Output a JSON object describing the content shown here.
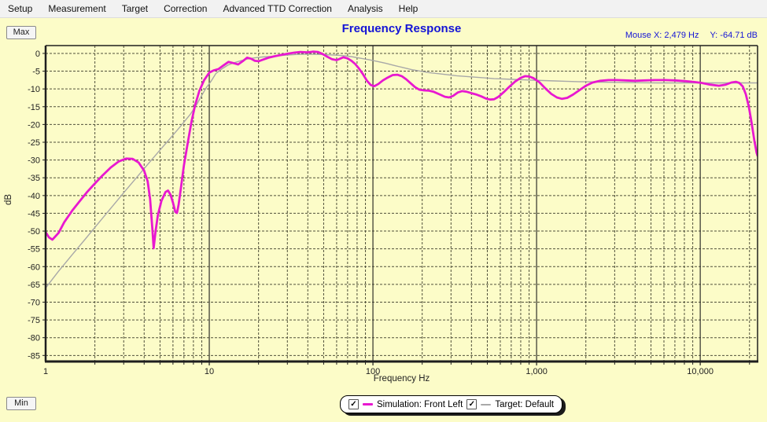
{
  "menu": {
    "items": [
      "Setup",
      "Measurement",
      "Target",
      "Correction",
      "Advanced TTD Correction",
      "Analysis",
      "Help"
    ]
  },
  "buttons": {
    "max_label": "Max",
    "min_label": "Min"
  },
  "header": {
    "mouse_x_readout": "Mouse X: 2,479 Hz",
    "mouse_y_readout": "Y: -64.71 dB"
  },
  "colors": {
    "page_bg": "#fcfcc8",
    "plot_bg": "#fcfcc8",
    "grid_dash": "#50503a",
    "grid_major": "#30302a",
    "border": "#1e1e1e",
    "accent_blue": "#1414d6",
    "simulation_magenta": "#e818d0",
    "target_gray": "#a8a8a8"
  },
  "legend": {
    "items": [
      {
        "label": "Simulation: Front Left",
        "checked": true,
        "color": "#e818d0",
        "thickness": 3
      },
      {
        "label": "Target: Default",
        "checked": true,
        "color": "#a8a8a8",
        "thickness": 2
      }
    ]
  },
  "chart_data": {
    "type": "line",
    "title": "Frequency Response",
    "xlabel": "Frequency Hz",
    "ylabel": "dB",
    "x_scale": "log",
    "xlim": [
      1,
      22400
    ],
    "ylim": [
      -86.7,
      2.2
    ],
    "grid": true,
    "legend_position": "bottom-center",
    "x_ticks": [
      {
        "value": 1,
        "label": "1"
      },
      {
        "value": 10,
        "label": "10"
      },
      {
        "value": 100,
        "label": "100"
      },
      {
        "value": 1000,
        "label": "1,000"
      },
      {
        "value": 10000,
        "label": "10,000"
      }
    ],
    "y_ticks": {
      "min": -85,
      "max": 0,
      "step": 5
    },
    "series": [
      {
        "name": "Simulation: Front Left",
        "color": "#e818d0",
        "width": 2.8,
        "points": [
          [
            1,
            -50.3
          ],
          [
            1.05,
            -51.8
          ],
          [
            1.1,
            -52.4
          ],
          [
            1.2,
            -50.5
          ],
          [
            1.3,
            -47.5
          ],
          [
            1.45,
            -44.3
          ],
          [
            1.6,
            -41.8
          ],
          [
            1.8,
            -38.9
          ],
          [
            2.0,
            -36.6
          ],
          [
            2.2,
            -34.6
          ],
          [
            2.5,
            -32.1
          ],
          [
            2.8,
            -30.4
          ],
          [
            3.1,
            -29.6
          ],
          [
            3.4,
            -29.7
          ],
          [
            3.7,
            -30.7
          ],
          [
            4.0,
            -33.0
          ],
          [
            4.2,
            -36.0
          ],
          [
            4.35,
            -41.0
          ],
          [
            4.5,
            -50.0
          ],
          [
            4.57,
            -54.8
          ],
          [
            4.7,
            -50.0
          ],
          [
            4.85,
            -45.5
          ],
          [
            5.1,
            -41.5
          ],
          [
            5.4,
            -39.0
          ],
          [
            5.6,
            -38.6
          ],
          [
            5.8,
            -39.8
          ],
          [
            6.0,
            -42.0
          ],
          [
            6.2,
            -44.6
          ],
          [
            6.35,
            -44.9
          ],
          [
            6.5,
            -42.5
          ],
          [
            6.7,
            -38.0
          ],
          [
            7.0,
            -31.5
          ],
          [
            7.4,
            -25.0
          ],
          [
            7.8,
            -19.0
          ],
          [
            8.2,
            -14.5
          ],
          [
            8.7,
            -10.5
          ],
          [
            9.3,
            -7.5
          ],
          [
            10,
            -5.4
          ],
          [
            10.6,
            -4.8
          ],
          [
            11.4,
            -4.4
          ],
          [
            12.2,
            -3.4
          ],
          [
            13.1,
            -2.4
          ],
          [
            14.0,
            -2.7
          ],
          [
            15.0,
            -3.1
          ],
          [
            16.0,
            -2.2
          ],
          [
            17.0,
            -1.2
          ],
          [
            18.0,
            -1.5
          ],
          [
            19.0,
            -2.1
          ],
          [
            20.0,
            -2.2
          ],
          [
            21.5,
            -1.7
          ],
          [
            23,
            -1.2
          ],
          [
            25,
            -0.8
          ],
          [
            27,
            -0.5
          ],
          [
            30,
            -0.1
          ],
          [
            33,
            0.2
          ],
          [
            36,
            0.4
          ],
          [
            40,
            0.3
          ],
          [
            43,
            0.5
          ],
          [
            46,
            0.4
          ],
          [
            49,
            -0.1
          ],
          [
            52,
            -0.8
          ],
          [
            56,
            -1.6
          ],
          [
            60,
            -1.9
          ],
          [
            63,
            -1.5
          ],
          [
            66,
            -1.1
          ],
          [
            70,
            -1.4
          ],
          [
            74,
            -2.1
          ],
          [
            78,
            -3.0
          ],
          [
            82,
            -4.2
          ],
          [
            87,
            -5.9
          ],
          [
            92,
            -7.7
          ],
          [
            97,
            -8.9
          ],
          [
            102,
            -9.2
          ],
          [
            108,
            -8.6
          ],
          [
            115,
            -7.6
          ],
          [
            123,
            -6.8
          ],
          [
            132,
            -6.1
          ],
          [
            141,
            -6.0
          ],
          [
            150,
            -6.4
          ],
          [
            160,
            -7.3
          ],
          [
            170,
            -8.4
          ],
          [
            181,
            -9.5
          ],
          [
            192,
            -10.2
          ],
          [
            205,
            -10.4
          ],
          [
            220,
            -10.5
          ],
          [
            235,
            -10.8
          ],
          [
            255,
            -11.5
          ],
          [
            275,
            -12.2
          ],
          [
            292,
            -12.4
          ],
          [
            310,
            -11.9
          ],
          [
            330,
            -11.0
          ],
          [
            350,
            -10.6
          ],
          [
            375,
            -10.8
          ],
          [
            400,
            -11.2
          ],
          [
            430,
            -11.6
          ],
          [
            460,
            -12.1
          ],
          [
            490,
            -12.7
          ],
          [
            520,
            -13.0
          ],
          [
            550,
            -12.9
          ],
          [
            585,
            -12.2
          ],
          [
            630,
            -10.9
          ],
          [
            680,
            -9.4
          ],
          [
            740,
            -7.9
          ],
          [
            800,
            -6.9
          ],
          [
            850,
            -6.4
          ],
          [
            900,
            -6.5
          ],
          [
            960,
            -7.0
          ],
          [
            1040,
            -8.1
          ],
          [
            1130,
            -9.8
          ],
          [
            1230,
            -11.4
          ],
          [
            1330,
            -12.4
          ],
          [
            1430,
            -12.8
          ],
          [
            1540,
            -12.5
          ],
          [
            1670,
            -11.6
          ],
          [
            1820,
            -10.4
          ],
          [
            2000,
            -9.1
          ],
          [
            2200,
            -8.2
          ],
          [
            2450,
            -7.7
          ],
          [
            2750,
            -7.5
          ],
          [
            3100,
            -7.5
          ],
          [
            3500,
            -7.6
          ],
          [
            4000,
            -7.7
          ],
          [
            4600,
            -7.6
          ],
          [
            5300,
            -7.5
          ],
          [
            6100,
            -7.5
          ],
          [
            7000,
            -7.6
          ],
          [
            8000,
            -7.8
          ],
          [
            9000,
            -8.0
          ],
          [
            10200,
            -8.3
          ],
          [
            11500,
            -8.8
          ],
          [
            13000,
            -9.1
          ],
          [
            14300,
            -8.8
          ],
          [
            15500,
            -8.2
          ],
          [
            16500,
            -8.0
          ],
          [
            17300,
            -8.3
          ],
          [
            18200,
            -9.3
          ],
          [
            19000,
            -11.5
          ],
          [
            19800,
            -15.0
          ],
          [
            20600,
            -19.5
          ],
          [
            21400,
            -24.5
          ],
          [
            22100,
            -28.0
          ],
          [
            22400,
            -28.8
          ]
        ]
      },
      {
        "name": "Target: Default",
        "color": "#a8a8a8",
        "width": 1.4,
        "points": [
          [
            1,
            -66.0
          ],
          [
            1.2,
            -61.3
          ],
          [
            1.45,
            -56.7
          ],
          [
            1.75,
            -52.2
          ],
          [
            2.1,
            -47.8
          ],
          [
            2.5,
            -43.6
          ],
          [
            3.0,
            -39.2
          ],
          [
            3.6,
            -34.9
          ],
          [
            4.3,
            -30.7
          ],
          [
            5.0,
            -27.2
          ],
          [
            5.8,
            -23.8
          ],
          [
            6.7,
            -20.4
          ],
          [
            7.7,
            -17.0
          ],
          [
            8.4,
            -14.3
          ],
          [
            9.0,
            -11.8
          ],
          [
            9.6,
            -9.6
          ],
          [
            10.3,
            -7.7
          ],
          [
            11,
            -5.6
          ],
          [
            12,
            -4.3
          ],
          [
            13,
            -3.3
          ],
          [
            14,
            -2.7
          ],
          [
            15.5,
            -2.1
          ],
          [
            17,
            -1.6
          ],
          [
            19,
            -1.25
          ],
          [
            21,
            -1.0
          ],
          [
            24,
            -0.85
          ],
          [
            27,
            -0.6
          ],
          [
            30,
            -0.45
          ],
          [
            34,
            -0.3
          ],
          [
            38,
            -0.25
          ],
          [
            43,
            -0.25
          ],
          [
            48,
            -0.3
          ],
          [
            54,
            -0.4
          ],
          [
            60,
            -0.5
          ],
          [
            68,
            -0.7
          ],
          [
            76,
            -1.0
          ],
          [
            85,
            -1.4
          ],
          [
            95,
            -1.8
          ],
          [
            105,
            -2.2
          ],
          [
            120,
            -2.8
          ],
          [
            135,
            -3.4
          ],
          [
            150,
            -3.9
          ],
          [
            170,
            -4.5
          ],
          [
            195,
            -5.0
          ],
          [
            220,
            -5.4
          ],
          [
            250,
            -5.7
          ],
          [
            285,
            -6.0
          ],
          [
            325,
            -6.3
          ],
          [
            370,
            -6.5
          ],
          [
            420,
            -6.7
          ],
          [
            480,
            -6.9
          ],
          [
            550,
            -7.1
          ],
          [
            630,
            -7.2
          ],
          [
            720,
            -7.3
          ],
          [
            830,
            -7.45
          ],
          [
            950,
            -7.55
          ],
          [
            1100,
            -7.65
          ],
          [
            1300,
            -7.75
          ],
          [
            1500,
            -7.85
          ],
          [
            1800,
            -7.95
          ],
          [
            2100,
            -8.0
          ],
          [
            2500,
            -8.1
          ],
          [
            3000,
            -8.15
          ],
          [
            3600,
            -8.2
          ],
          [
            4400,
            -8.25
          ],
          [
            5500,
            -8.3
          ],
          [
            7000,
            -8.3
          ],
          [
            9000,
            -8.3
          ],
          [
            12000,
            -8.3
          ],
          [
            16000,
            -8.3
          ],
          [
            20000,
            -8.3
          ],
          [
            22400,
            -8.3
          ]
        ]
      }
    ]
  }
}
